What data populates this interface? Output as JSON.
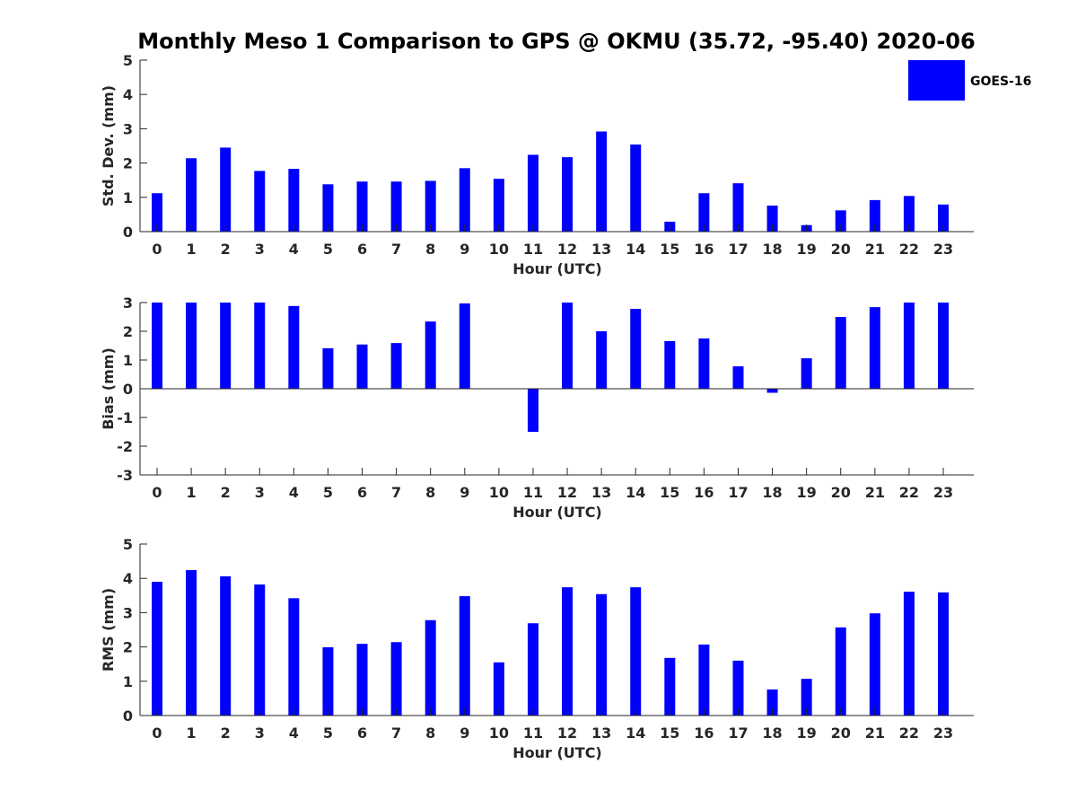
{
  "title": "Monthly Meso 1 Comparison to GPS @ OKMU (35.72, -95.40) 2020-06",
  "legend": {
    "label": "GOES-16",
    "color": "#0000ff",
    "placement": "top-right"
  },
  "chart_data": [
    {
      "type": "bar",
      "name": "std-dev",
      "xlabel": "Hour (UTC)",
      "ylabel": "Std. Dev. (mm)",
      "ylim": [
        0,
        5
      ],
      "yticks": [
        0,
        1,
        2,
        3,
        4,
        5
      ],
      "categories": [
        "0",
        "1",
        "2",
        "3",
        "4",
        "5",
        "6",
        "7",
        "8",
        "9",
        "10",
        "11",
        "12",
        "13",
        "14",
        "15",
        "16",
        "17",
        "18",
        "19",
        "20",
        "21",
        "22",
        "23"
      ],
      "values": [
        1.12,
        2.14,
        2.45,
        1.77,
        1.83,
        1.38,
        1.46,
        1.46,
        1.48,
        1.85,
        1.54,
        2.24,
        2.17,
        2.92,
        2.54,
        0.29,
        1.12,
        1.41,
        0.76,
        0.19,
        0.62,
        0.92,
        1.04,
        0.79
      ],
      "grid": false
    },
    {
      "type": "bar",
      "name": "bias",
      "xlabel": "Hour (UTC)",
      "ylabel": "Bias (mm)",
      "ylim": [
        -3,
        3
      ],
      "yticks": [
        -3,
        -2,
        -1,
        0,
        1,
        2,
        3
      ],
      "categories": [
        "0",
        "1",
        "2",
        "3",
        "4",
        "5",
        "6",
        "7",
        "8",
        "9",
        "10",
        "11",
        "12",
        "13",
        "14",
        "15",
        "16",
        "17",
        "18",
        "19",
        "20",
        "21",
        "22",
        "23"
      ],
      "values": [
        3.0,
        3.0,
        3.0,
        3.0,
        2.88,
        1.41,
        1.54,
        1.59,
        2.34,
        2.97,
        0.0,
        -1.5,
        3.0,
        2.0,
        2.78,
        1.66,
        1.75,
        0.78,
        -0.14,
        1.06,
        2.5,
        2.84,
        3.0,
        3.0
      ],
      "grid": false
    },
    {
      "type": "bar",
      "name": "rms",
      "xlabel": "Hour (UTC)",
      "ylabel": "RMS (mm)",
      "ylim": [
        0,
        5
      ],
      "yticks": [
        0,
        1,
        2,
        3,
        4,
        5
      ],
      "categories": [
        "0",
        "1",
        "2",
        "3",
        "4",
        "5",
        "6",
        "7",
        "8",
        "9",
        "10",
        "11",
        "12",
        "13",
        "14",
        "15",
        "16",
        "17",
        "18",
        "19",
        "20",
        "21",
        "22",
        "23"
      ],
      "values": [
        3.9,
        4.24,
        4.06,
        3.82,
        3.42,
        1.99,
        2.09,
        2.14,
        2.78,
        3.48,
        1.55,
        2.69,
        3.74,
        3.54,
        3.74,
        1.68,
        2.07,
        1.6,
        0.76,
        1.07,
        2.57,
        2.98,
        3.61,
        3.59
      ],
      "grid": false
    }
  ]
}
